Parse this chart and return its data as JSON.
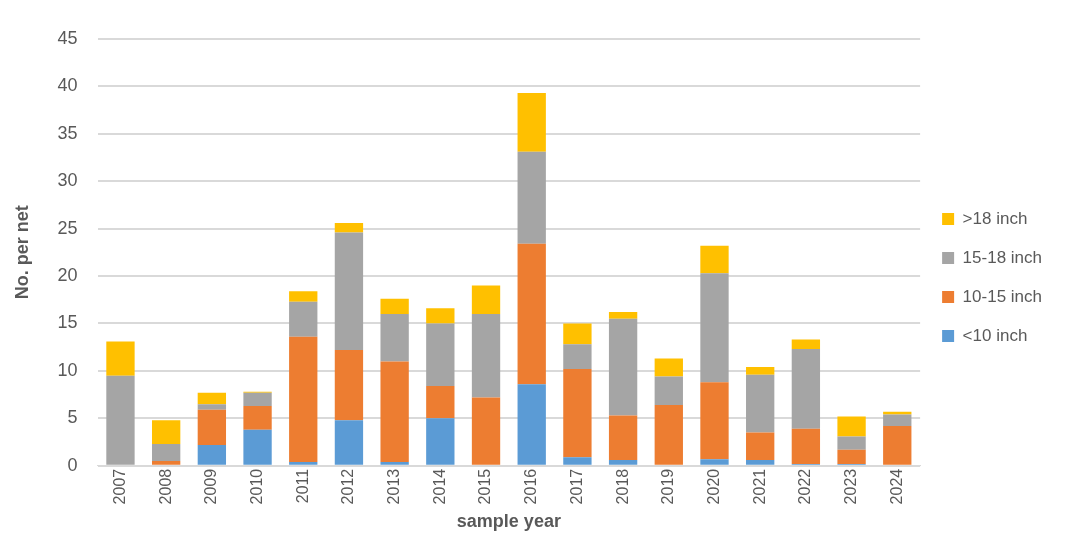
{
  "chart_data": {
    "type": "bar",
    "stacked": true,
    "xlabel": "sample year",
    "ylabel": "No. per net",
    "categories": [
      "2007",
      "2008",
      "2009",
      "2010",
      "2011",
      "2012",
      "2013",
      "2014",
      "2015",
      "2016",
      "2017",
      "2018",
      "2019",
      "2020",
      "2021",
      "2022",
      "2023",
      "2024"
    ],
    "series": [
      {
        "name": "<10 inch",
        "color": "#5b9bd5",
        "values": [
          0,
          0,
          2.2,
          3.8,
          0.4,
          4.8,
          0.4,
          5.0,
          0,
          8.6,
          0.9,
          0.6,
          0,
          0.7,
          0.6,
          0.2,
          0.2,
          0
        ]
      },
      {
        "name": "10-15 inch",
        "color": "#ed7d31",
        "values": [
          0,
          0.5,
          3.7,
          2.5,
          13.2,
          7.4,
          10.6,
          3.4,
          7.2,
          14.8,
          9.3,
          4.7,
          6.4,
          8.1,
          2.9,
          3.7,
          1.5,
          4.2
        ]
      },
      {
        "name": "15-18 inch",
        "color": "#a5a5a5",
        "values": [
          9.5,
          1.8,
          0.6,
          1.4,
          3.7,
          12.4,
          5.0,
          6.6,
          8.8,
          9.7,
          2.6,
          10.2,
          3.0,
          11.5,
          6.1,
          8.4,
          1.4,
          1.2
        ]
      },
      {
        "name": ">18 inch",
        "color": "#ffc000",
        "values": [
          3.6,
          2.5,
          1.2,
          0.1,
          1.1,
          1.0,
          1.6,
          1.6,
          3.0,
          6.2,
          2.2,
          0.7,
          1.9,
          2.9,
          0.8,
          1.0,
          2.1,
          0.3
        ]
      }
    ],
    "ylim": [
      0,
      45
    ],
    "yticks": [
      0,
      5,
      10,
      15,
      20,
      25,
      30,
      35,
      40,
      45
    ],
    "grid": "y",
    "legend": "right"
  }
}
